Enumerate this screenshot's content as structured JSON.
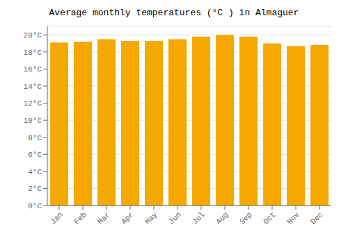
{
  "chart_data": {
    "type": "bar",
    "title": "Average monthly temperatures (°C ) in Almaguer",
    "categories": [
      "Jan",
      "Feb",
      "Mar",
      "Apr",
      "May",
      "Jun",
      "Jul",
      "Aug",
      "Sep",
      "Oct",
      "Nov",
      "Dec"
    ],
    "values": [
      19.1,
      19.2,
      19.5,
      19.3,
      19.3,
      19.5,
      19.8,
      20.0,
      19.8,
      19.0,
      18.7,
      18.8
    ],
    "color": "#F5A800",
    "ylim": [
      0,
      21
    ],
    "yticks": [
      {
        "value": 0,
        "label": "0°C"
      },
      {
        "value": 2,
        "label": "2°C"
      },
      {
        "value": 4,
        "label": "4°C"
      },
      {
        "value": 6,
        "label": "6°C"
      },
      {
        "value": 8,
        "label": "8°C"
      },
      {
        "value": 10,
        "label": "10°C"
      },
      {
        "value": 12,
        "label": "12°C"
      },
      {
        "value": 14,
        "label": "14°C"
      },
      {
        "value": 16,
        "label": "16°C"
      },
      {
        "value": 18,
        "label": "18°C"
      },
      {
        "value": 20,
        "label": "20°C"
      }
    ],
    "grid": true
  }
}
